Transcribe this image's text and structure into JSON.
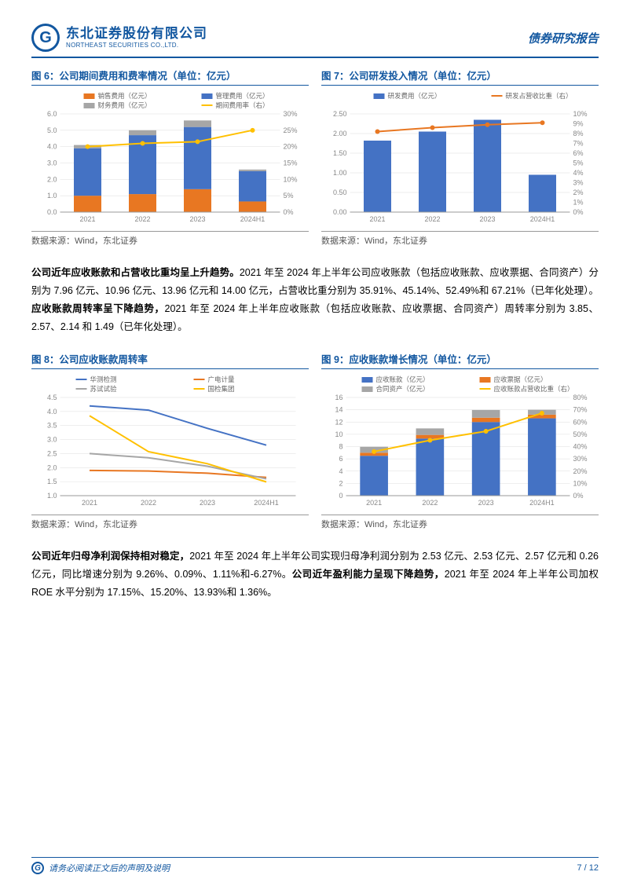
{
  "header": {
    "company_cn": "东北证券股份有限公司",
    "company_en": "NORTHEAST SECURITIES CO.,LTD.",
    "report_type": "债券研究报告"
  },
  "chart6": {
    "title": "图 6：公司期间费用和费率情况（单位：亿元）",
    "type": "stacked-bar-line",
    "categories": [
      "2021",
      "2022",
      "2023",
      "2024H1"
    ],
    "legend": [
      "销售费用（亿元）",
      "管理费用（亿元）",
      "财务费用（亿元）",
      "期间费用率（右）"
    ],
    "colors": [
      "#e87722",
      "#4472c4",
      "#a6a6a6",
      "#ffc000"
    ],
    "stack1": [
      1.0,
      1.1,
      1.4,
      0.65
    ],
    "stack2": [
      2.9,
      3.6,
      3.8,
      1.85
    ],
    "stack3": [
      0.2,
      0.3,
      0.4,
      0.1
    ],
    "line": [
      20,
      21,
      21.5,
      25
    ],
    "ylim_left": [
      0,
      6
    ],
    "ytick_left": 1.0,
    "ylim_right": [
      0,
      30
    ],
    "ytick_right": 5,
    "bg": "#ffffff"
  },
  "chart7": {
    "title": "图 7：公司研发投入情况（单位：亿元）",
    "type": "bar-line",
    "categories": [
      "2021",
      "2022",
      "2023",
      "2024H1"
    ],
    "legend": [
      "研发费用（亿元）",
      "研发占营收比重（右）"
    ],
    "colors": [
      "#4472c4",
      "#e87722"
    ],
    "bars": [
      1.82,
      2.05,
      2.35,
      0.95
    ],
    "line": [
      8.2,
      8.6,
      8.9,
      9.1
    ],
    "ylim_left": [
      0,
      2.5
    ],
    "ytick_left": 0.5,
    "ylim_right": [
      0,
      10
    ],
    "ytick_right": 1,
    "bg": "#ffffff"
  },
  "para1": "公司近年应收账款和占营收比重均呈上升趋势。2021 年至 2024 年上半年公司应收账款（包括应收账款、应收票据、合同资产）分别为 7.96 亿元、10.96 亿元、13.96 亿元和 14.00 亿元，占营收比重分别为 35.91%、45.14%、52.49%和 67.21%（已年化处理）。应收账款周转率呈下降趋势，2021 年至 2024 年上半年应收账款（包括应收账款、应收票据、合同资产）周转率分别为 3.85、2.57、2.14 和 1.49（已年化处理）。",
  "chart8": {
    "title": "图 8：公司应收账款周转率",
    "type": "line",
    "categories": [
      "2021",
      "2022",
      "2023",
      "2024H1"
    ],
    "legend": [
      "华测检测",
      "广电计量",
      "苏试试验",
      "国检集团"
    ],
    "colors": [
      "#4472c4",
      "#e87722",
      "#a6a6a6",
      "#ffc000"
    ],
    "series1": [
      4.2,
      4.05,
      3.4,
      2.8
    ],
    "series2": [
      1.9,
      1.88,
      1.8,
      1.65
    ],
    "series3": [
      2.5,
      2.35,
      2.05,
      1.6
    ],
    "series4": [
      3.85,
      2.57,
      2.14,
      1.49
    ],
    "ylim": [
      1.0,
      4.5
    ],
    "ytick": 0.5,
    "bg": "#ffffff"
  },
  "chart9": {
    "title": "图 9：应收账款增长情况（单位：亿元）",
    "type": "stacked-bar-line",
    "categories": [
      "2021",
      "2022",
      "2023",
      "2024H1"
    ],
    "legend": [
      "应收账款（亿元）",
      "应收票据（亿元）",
      "合同资产（亿元）",
      "应收账款占营收比重（右）"
    ],
    "colors": [
      "#4472c4",
      "#e87722",
      "#a6a6a6",
      "#ffc000"
    ],
    "stack1": [
      6.5,
      9.3,
      12.0,
      12.6
    ],
    "stack2": [
      0.5,
      0.6,
      0.7,
      0.6
    ],
    "stack3": [
      0.96,
      1.06,
      1.26,
      0.8
    ],
    "line": [
      35.91,
      45.14,
      52.49,
      67.21
    ],
    "ylim_left": [
      0,
      16
    ],
    "ytick_left": 2,
    "ylim_right": [
      0,
      80
    ],
    "ytick_right": 10,
    "bg": "#ffffff"
  },
  "para2": "公司近年归母净利润保持相对稳定，2021 年至 2024 年上半年公司实现归母净利润分别为 2.53 亿元、2.53 亿元、2.57 亿元和 0.26 亿元，同比增速分别为 9.26%、0.09%、1.11%和-6.27%。公司近年盈利能力呈现下降趋势，2021 年至 2024 年上半年公司加权 ROE 水平分别为 17.15%、15.20%、13.93%和 1.36%。",
  "source": "数据来源：Wind，东北证券",
  "footer": {
    "disclaimer": "请务必阅读正文后的声明及说明",
    "page": "7 / 12"
  }
}
